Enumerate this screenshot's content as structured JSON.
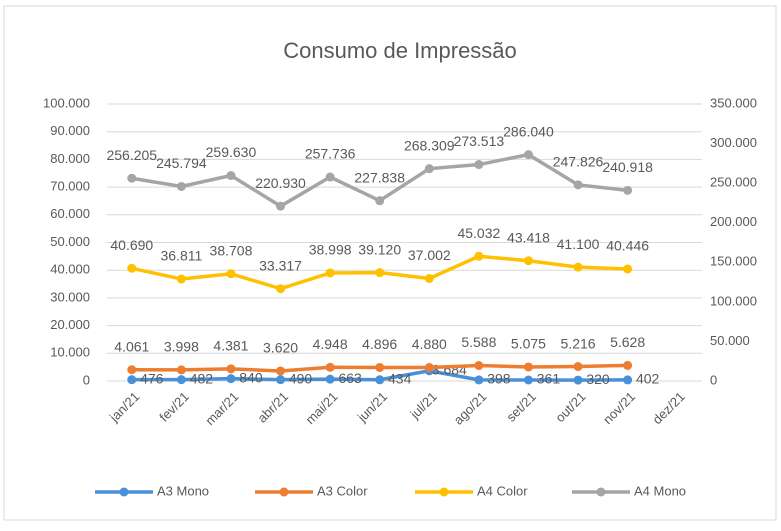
{
  "chart_data": {
    "type": "line",
    "title": "Consumo de Impressão",
    "categories": [
      "jan/21",
      "fev/21",
      "mar/21",
      "abr/21",
      "mai/21",
      "jun/21",
      "jul/21",
      "ago/21",
      "set/21",
      "out/21",
      "nov/21",
      "dez/21"
    ],
    "series": [
      {
        "name": "A3 Mono",
        "color": "#4a90d9",
        "axis": "y",
        "values": [
          476,
          482,
          840,
          490,
          663,
          434,
          3684,
          398,
          361,
          320,
          402,
          null
        ],
        "value_labels": [
          "476",
          "482",
          "840",
          "490",
          "663",
          "434",
          "3.684",
          "398",
          "361",
          "320",
          "402",
          null
        ]
      },
      {
        "name": "A3 Color",
        "color": "#ed7d31",
        "axis": "y",
        "values": [
          4061,
          3998,
          4381,
          3620,
          4948,
          4896,
          4880,
          5588,
          5075,
          5216,
          5628,
          null
        ],
        "value_labels": [
          "4.061",
          "3.998",
          "4.381",
          "3.620",
          "4.948",
          "4.896",
          "4.880",
          "5.588",
          "5.075",
          "5.216",
          "5.628",
          null
        ]
      },
      {
        "name": "A4 Color",
        "color": "#ffc000",
        "axis": "y",
        "values": [
          40690,
          36811,
          38708,
          33317,
          38998,
          39120,
          37002,
          45032,
          43418,
          41100,
          40446,
          null
        ],
        "value_labels": [
          "40.690",
          "36.811",
          "38.708",
          "33.317",
          "38.998",
          "39.120",
          "37.002",
          "45.032",
          "43.418",
          "41.100",
          "40.446",
          null
        ]
      },
      {
        "name": "A4 Mono",
        "color": "#a5a5a5",
        "axis": "y2",
        "values": [
          256205,
          245794,
          259630,
          220930,
          257736,
          227838,
          268309,
          273513,
          286040,
          247826,
          240918,
          null
        ],
        "value_labels": [
          "256.205",
          "245.794",
          "259.630",
          "220.930",
          "257.736",
          "227.838",
          "268.309",
          "273.513",
          "286.040",
          "247.826",
          "240.918",
          null
        ]
      }
    ],
    "ylim": [
      0,
      100000
    ],
    "yticks": [
      0,
      {
        "value": 10000,
        "label": "10.000"
      },
      {
        "value": 20000,
        "label": "20.000"
      },
      {
        "value": 30000,
        "label": "30.000"
      },
      {
        "value": 40000,
        "label": "40.000"
      },
      {
        "value": 50000,
        "label": "50.000"
      },
      {
        "value": 60000,
        "label": "60.000"
      },
      {
        "value": 70000,
        "label": "70.000"
      },
      {
        "value": 80000,
        "label": "80.000"
      },
      {
        "value": 90000,
        "label": "90.000"
      },
      {
        "value": 100000,
        "label": "100.000"
      }
    ],
    "y2lim": [
      0,
      350000
    ],
    "y2ticks": [
      0,
      {
        "value": 50000,
        "label": "50.000"
      },
      {
        "value": 100000,
        "label": "100.000"
      },
      {
        "value": 150000,
        "label": "150.000"
      },
      {
        "value": 200000,
        "label": "200.000"
      },
      {
        "value": 250000,
        "label": "250.000"
      },
      {
        "value": 300000,
        "label": "300.000"
      },
      {
        "value": 350000,
        "label": "350.000"
      }
    ],
    "grid": true,
    "legend": "bottom"
  }
}
